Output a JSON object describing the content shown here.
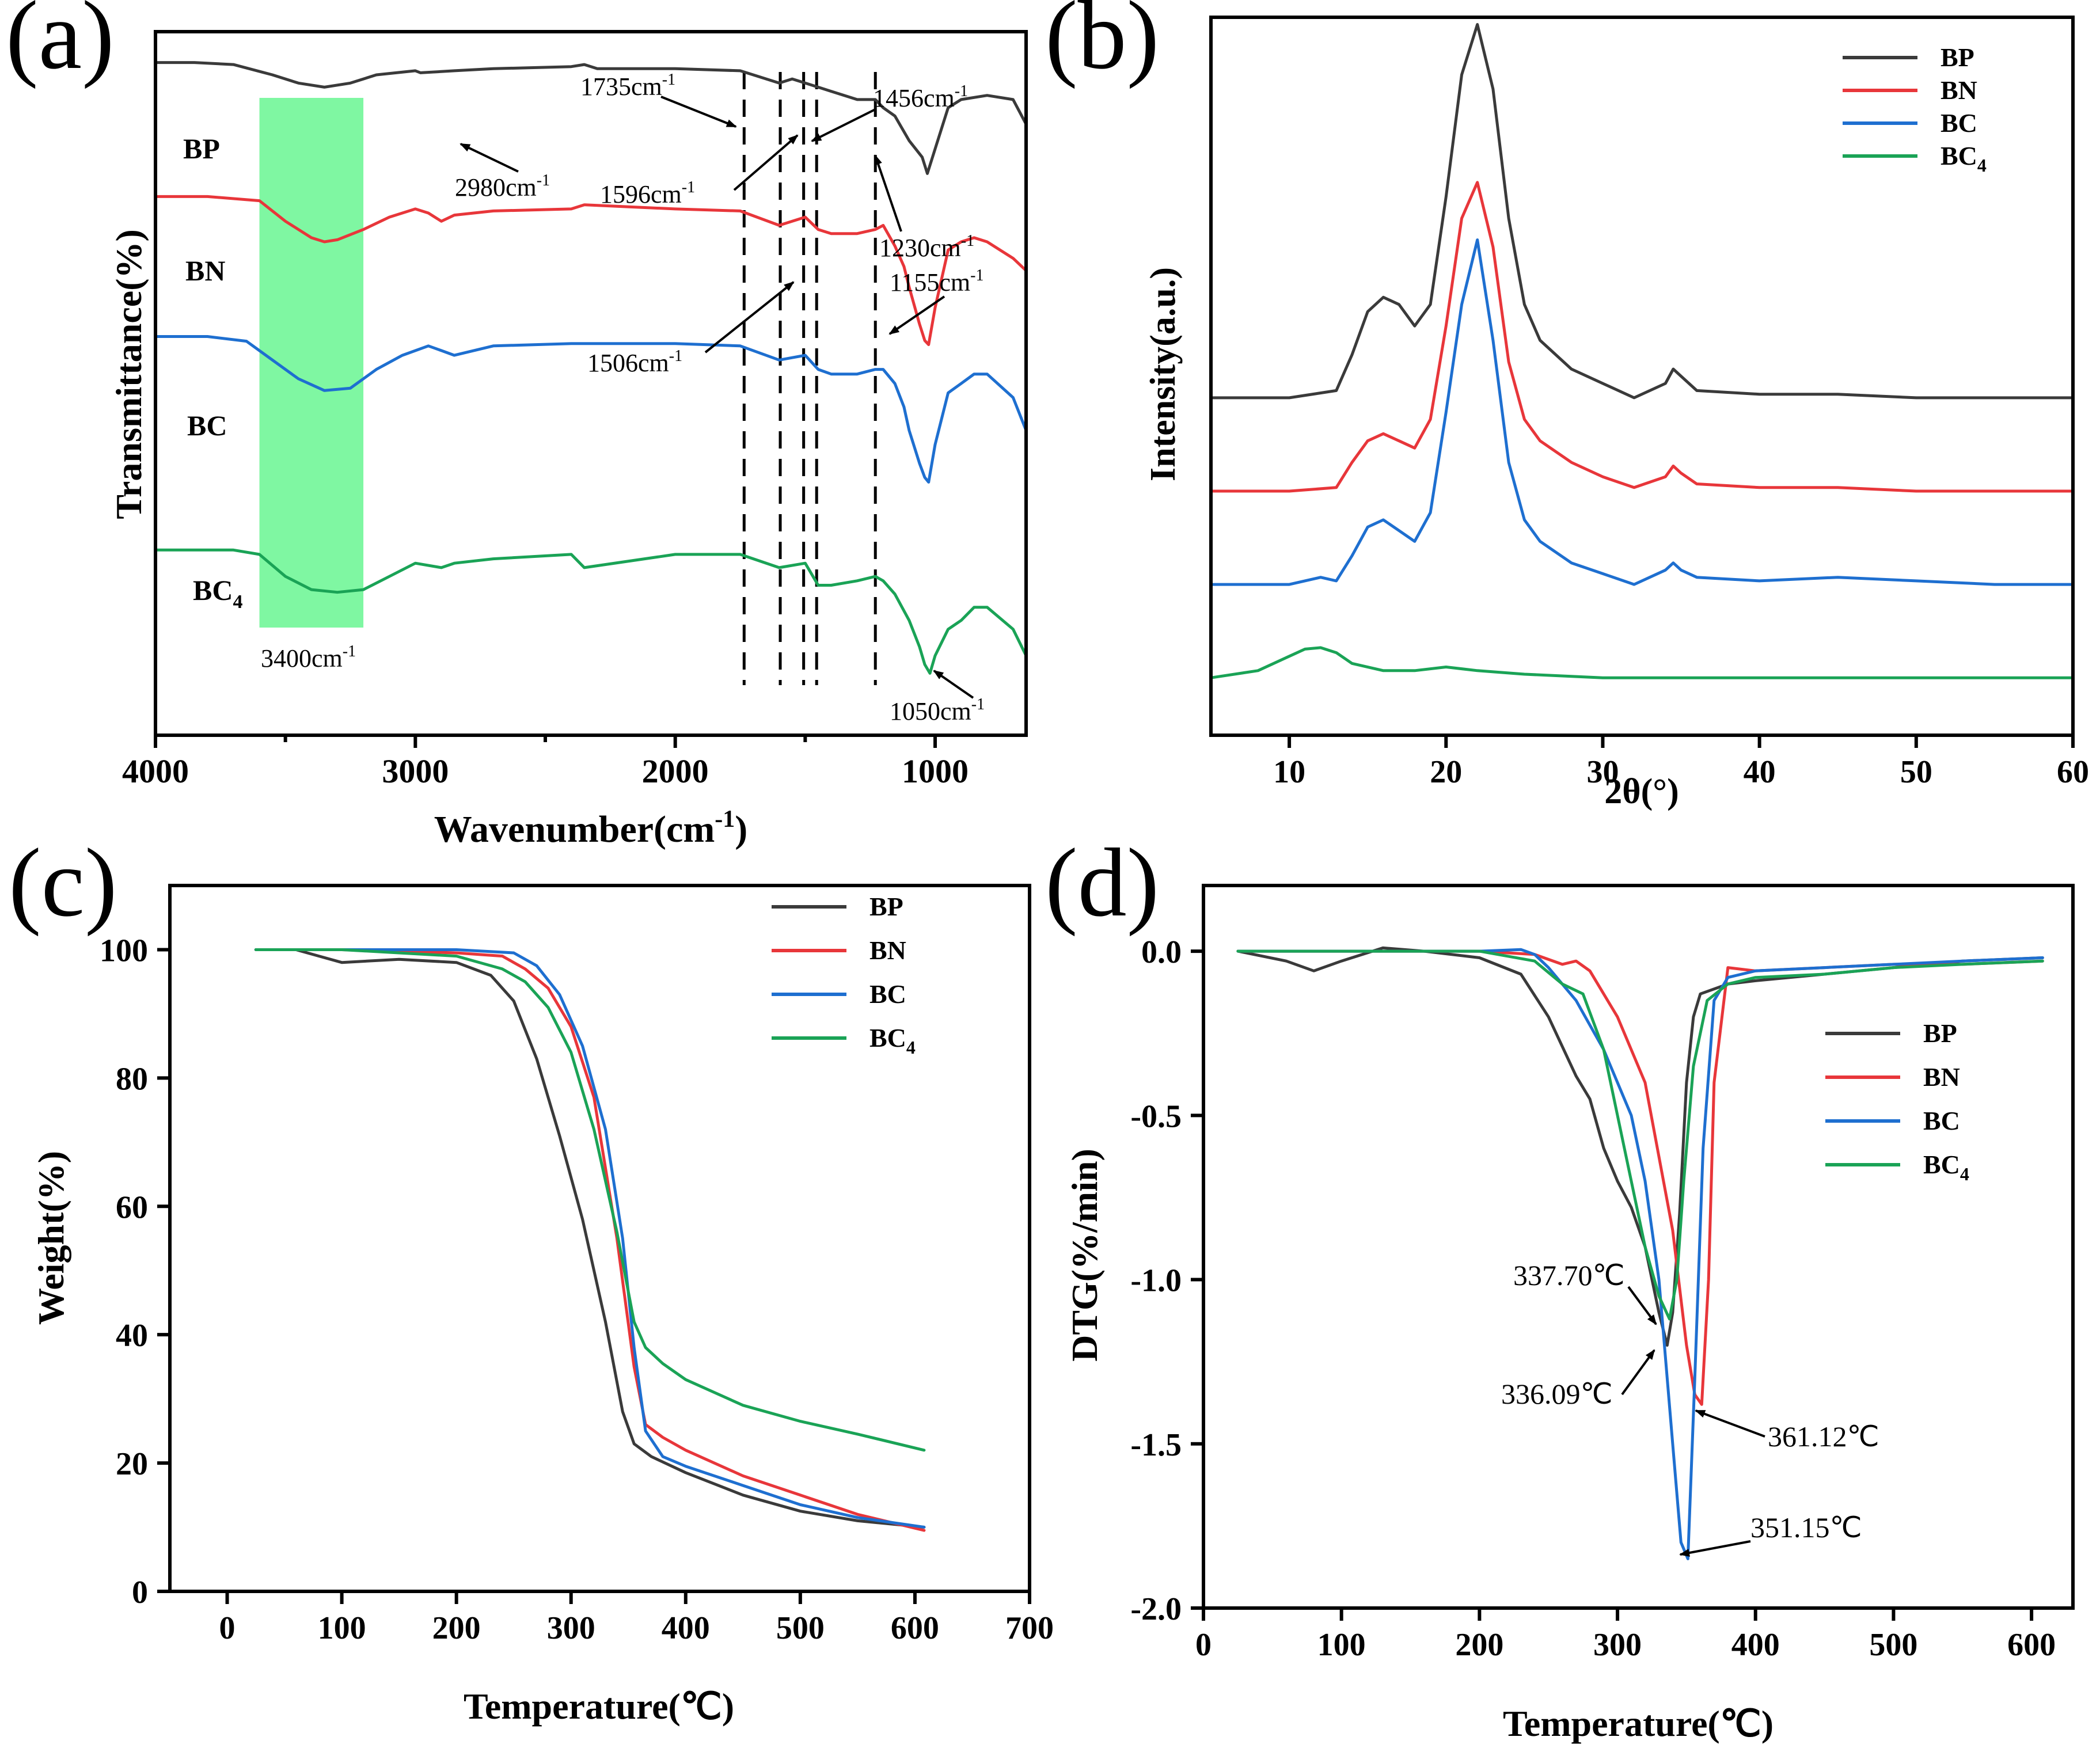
{
  "colors": {
    "BP": "#3a3a3a",
    "BN": "#e8363a",
    "BC": "#1e6fd0",
    "BC4": "#1aa356",
    "band": "#7ff7a2"
  },
  "chart_data": [
    {
      "panel": "(a)",
      "type": "line",
      "xlabel": "Wavenumber(cm",
      "xlabel_sup": "-1",
      "xlabel_end": ")",
      "ylabel": "Transmittance(%)",
      "xlim": [
        4000,
        650
      ],
      "ylim": [
        0,
        100
      ],
      "xticks": [
        "4000",
        "3000",
        "2000",
        "1000"
      ],
      "xtick_values": [
        4000,
        3000,
        2000,
        1000
      ],
      "band": [
        3600,
        3200
      ],
      "vlines": [
        1735,
        1596,
        1506,
        1456,
        1230
      ],
      "series": [
        {
          "name": "BP",
          "label": "BP",
          "sub": "",
          "x": [
            4000,
            3850,
            3700,
            3550,
            3450,
            3350,
            3250,
            3150,
            3000,
            2980,
            2850,
            2700,
            2400,
            2350,
            2300,
            2000,
            1750,
            1700,
            1600,
            1550,
            1500,
            1450,
            1400,
            1300,
            1230,
            1200,
            1155,
            1100,
            1050,
            1030,
            1000,
            950,
            900,
            800,
            700,
            650
          ],
          "y": [
            91,
            91,
            90.5,
            88,
            86,
            85,
            86,
            88,
            89,
            88.5,
            89,
            89.5,
            90,
            90.5,
            89.5,
            89.5,
            89,
            88,
            86,
            87,
            86,
            85,
            84,
            82,
            82,
            80,
            78,
            72,
            68,
            64,
            70,
            80,
            82,
            83,
            82,
            76
          ]
        },
        {
          "name": "BN",
          "label": "BN",
          "sub": "",
          "x": [
            4000,
            3800,
            3600,
            3500,
            3400,
            3350,
            3300,
            3200,
            3100,
            3000,
            2950,
            2900,
            2850,
            2700,
            2400,
            2350,
            2000,
            1750,
            1600,
            1550,
            1500,
            1450,
            1400,
            1300,
            1230,
            1200,
            1155,
            1120,
            1100,
            1060,
            1040,
            1025,
            1000,
            950,
            900,
            850,
            800,
            700,
            650
          ],
          "y": [
            69,
            69,
            68,
            63,
            59,
            58,
            58.5,
            61,
            64,
            66,
            65,
            63,
            64.5,
            65.5,
            66,
            67,
            66,
            65.5,
            62,
            63,
            64,
            61,
            60,
            60,
            61,
            62,
            57,
            52,
            47,
            38,
            34,
            33,
            42,
            56,
            58,
            59,
            58,
            54,
            51
          ]
        },
        {
          "name": "BC",
          "label": "BC",
          "sub": "",
          "x": [
            4000,
            3800,
            3650,
            3550,
            3450,
            3350,
            3250,
            3150,
            3050,
            2950,
            2900,
            2850,
            2700,
            2400,
            2000,
            1750,
            1600,
            1550,
            1500,
            1450,
            1400,
            1300,
            1230,
            1200,
            1155,
            1120,
            1100,
            1060,
            1040,
            1025,
            1000,
            950,
            900,
            850,
            800,
            700,
            650
          ],
          "y": [
            45,
            45,
            44,
            40,
            36,
            33.5,
            34,
            38,
            41,
            43,
            42,
            41,
            43,
            43.5,
            43.5,
            43,
            40,
            40.5,
            41,
            38,
            37,
            37,
            38,
            38,
            35,
            30,
            25,
            18,
            15,
            14,
            22,
            33,
            35,
            37,
            37,
            32,
            25
          ]
        },
        {
          "name": "BC4",
          "label": "BC",
          "sub": "4",
          "x": [
            4000,
            3700,
            3600,
            3500,
            3400,
            3300,
            3200,
            3100,
            3000,
            2900,
            2850,
            2700,
            2400,
            2350,
            2000,
            1750,
            1600,
            1500,
            1450,
            1400,
            1300,
            1230,
            1200,
            1155,
            1100,
            1060,
            1040,
            1020,
            1000,
            950,
            900,
            850,
            800,
            700,
            650
          ],
          "y": [
            19,
            19,
            18.5,
            16,
            14.5,
            14.2,
            14.5,
            16,
            17.5,
            17,
            17.5,
            18,
            18.5,
            17,
            18.5,
            18.5,
            17,
            17.5,
            15,
            15,
            15.5,
            16,
            15.5,
            14,
            11,
            8,
            6,
            5,
            7,
            10,
            11,
            12.5,
            12.5,
            10,
            7
          ]
        }
      ],
      "annotations": [
        {
          "text": "1735cm",
          "sup": "-1"
        },
        {
          "text": "1456cm",
          "sup": "-1"
        },
        {
          "text": "2980cm",
          "sup": "-1"
        },
        {
          "text": "1596cm",
          "sup": "-1"
        },
        {
          "text": "1230cm",
          "sup": "-1"
        },
        {
          "text": "1155cm",
          "sup": "-1"
        },
        {
          "text": "1506cm",
          "sup": "-1"
        },
        {
          "text": "3400cm",
          "sup": "-1"
        },
        {
          "text": "1050cm",
          "sup": "-1"
        }
      ]
    },
    {
      "panel": "(b)",
      "type": "line",
      "xlabel": "2θ(°)",
      "ylabel": "Intensity(a.u.)",
      "xlim": [
        5,
        60
      ],
      "ylim": [
        0,
        100
      ],
      "xticks": [
        "10",
        "20",
        "30",
        "40",
        "50",
        "60"
      ],
      "xtick_values": [
        10,
        20,
        30,
        40,
        50,
        60
      ],
      "legend": [
        "BP",
        "BN",
        "BC",
        "BC4"
      ],
      "series": [
        {
          "name": "BP",
          "label": "BP",
          "sub": "",
          "x": [
            5,
            10,
            13,
            14,
            15,
            16,
            17,
            18,
            19,
            20,
            21,
            22,
            23,
            24,
            25,
            26,
            28,
            30,
            32,
            34,
            34.5,
            35,
            36,
            40,
            45,
            50,
            55,
            60
          ],
          "y": [
            47,
            47,
            48,
            53,
            59,
            61,
            60,
            57,
            60,
            75,
            92,
            99,
            90,
            72,
            60,
            55,
            51,
            49,
            47,
            49,
            51,
            50,
            48,
            47.5,
            47.5,
            47,
            47,
            47
          ]
        },
        {
          "name": "BN",
          "label": "BN",
          "sub": "",
          "x": [
            5,
            10,
            13,
            14,
            15,
            16,
            17,
            18,
            19,
            20,
            21,
            22,
            23,
            24,
            25,
            26,
            28,
            30,
            32,
            34,
            34.5,
            35,
            36,
            40,
            45,
            50,
            55,
            60
          ],
          "y": [
            34,
            34,
            34.5,
            38,
            41,
            42,
            41,
            40,
            44,
            57,
            72,
            77,
            68,
            52,
            44,
            41,
            38,
            36,
            34.5,
            36,
            37.5,
            36.5,
            35,
            34.5,
            34.5,
            34,
            34,
            34
          ]
        },
        {
          "name": "BC",
          "label": "BC",
          "sub": "",
          "x": [
            5,
            10,
            12,
            13,
            14,
            15,
            16,
            17,
            18,
            19,
            20,
            21,
            22,
            23,
            24,
            25,
            26,
            28,
            30,
            32,
            34,
            34.5,
            35,
            36,
            40,
            45,
            50,
            55,
            60
          ],
          "y": [
            21,
            21,
            22,
            21.5,
            25,
            29,
            30,
            28.5,
            27,
            31,
            45,
            60,
            69,
            55,
            38,
            30,
            27,
            24,
            22.5,
            21,
            23,
            24,
            23,
            22,
            21.5,
            22,
            21.5,
            21,
            21
          ]
        },
        {
          "name": "BC4",
          "label": "BC",
          "sub": "4",
          "x": [
            5,
            8,
            10,
            11,
            12,
            13,
            14,
            16,
            18,
            20,
            22,
            25,
            30,
            40,
            50,
            60
          ],
          "y": [
            8,
            9,
            11,
            12,
            12.2,
            11.5,
            10,
            9,
            9,
            9.5,
            9,
            8.5,
            8,
            8,
            8,
            8
          ]
        }
      ]
    },
    {
      "panel": "(c)",
      "type": "line",
      "xlabel": "Temperature(℃)",
      "ylabel": "Weight(%)",
      "xlim": [
        -50,
        700
      ],
      "ylim": [
        0,
        110
      ],
      "xticks": [
        "0",
        "100",
        "200",
        "300",
        "400",
        "500",
        "600",
        "700"
      ],
      "xtick_values": [
        0,
        100,
        200,
        300,
        400,
        500,
        600,
        700
      ],
      "yticks": [
        "0",
        "20",
        "40",
        "60",
        "80",
        "100"
      ],
      "ytick_values": [
        0,
        20,
        40,
        60,
        80,
        100
      ],
      "legend": [
        "BP",
        "BN",
        "BC",
        "BC4"
      ],
      "series": [
        {
          "name": "BP",
          "label": "BP",
          "sub": "",
          "x": [
            25,
            60,
            80,
            100,
            150,
            200,
            230,
            250,
            270,
            290,
            310,
            330,
            345,
            355,
            370,
            400,
            450,
            500,
            550,
            608
          ],
          "y": [
            100,
            100,
            99,
            98,
            98.5,
            98,
            96,
            92,
            83,
            71,
            58,
            42,
            28,
            23,
            21,
            18.5,
            15,
            12.5,
            11,
            10
          ]
        },
        {
          "name": "BN",
          "label": "BN",
          "sub": "",
          "x": [
            25,
            100,
            200,
            240,
            260,
            280,
            300,
            320,
            340,
            355,
            365,
            380,
            400,
            450,
            500,
            550,
            608
          ],
          "y": [
            100,
            100,
            99.5,
            99,
            97,
            94,
            88,
            77,
            55,
            35,
            26,
            24,
            22,
            18,
            15,
            12,
            9.5
          ]
        },
        {
          "name": "BC",
          "label": "BC",
          "sub": "",
          "x": [
            25,
            100,
            200,
            250,
            270,
            290,
            310,
            330,
            345,
            355,
            365,
            380,
            400,
            450,
            500,
            550,
            608
          ],
          "y": [
            100,
            100,
            100,
            99.5,
            97.5,
            93,
            85,
            72,
            55,
            38,
            25,
            21,
            19.5,
            16.5,
            13.5,
            11.5,
            10
          ]
        },
        {
          "name": "BC4",
          "label": "BC",
          "sub": "4",
          "x": [
            25,
            100,
            200,
            240,
            260,
            280,
            300,
            320,
            340,
            355,
            365,
            380,
            400,
            450,
            500,
            550,
            608
          ],
          "y": [
            100,
            100,
            99,
            97,
            95,
            91,
            84,
            72,
            56,
            42,
            38,
            35.5,
            33,
            29,
            26.5,
            24.5,
            22
          ]
        }
      ]
    },
    {
      "panel": "(d)",
      "type": "line",
      "xlabel": "Temperature(℃)",
      "ylabel": "DTG(%/min)",
      "xlim": [
        0,
        630
      ],
      "ylim": [
        -2.0,
        0.2
      ],
      "xticks": [
        "0",
        "100",
        "200",
        "300",
        "400",
        "500",
        "600"
      ],
      "xtick_values": [
        0,
        100,
        200,
        300,
        400,
        500,
        600
      ],
      "yticks": [
        "0.0",
        "-0.5",
        "-1.0",
        "-1.5",
        "-2.0"
      ],
      "ytick_values": [
        0.0,
        -0.5,
        -1.0,
        -1.5,
        -2.0
      ],
      "legend": [
        "BP",
        "BN",
        "BC",
        "BC4"
      ],
      "series": [
        {
          "name": "BP",
          "label": "BP",
          "sub": "",
          "x": [
            25,
            60,
            80,
            100,
            130,
            160,
            200,
            230,
            250,
            270,
            280,
            290,
            300,
            310,
            320,
            330,
            336,
            340,
            345,
            350,
            355,
            360,
            380,
            400,
            450,
            500,
            550,
            608
          ],
          "y": [
            0,
            -0.03,
            -0.06,
            -0.03,
            0.01,
            0.0,
            -0.02,
            -0.07,
            -0.2,
            -0.38,
            -0.45,
            -0.6,
            -0.7,
            -0.78,
            -0.9,
            -1.1,
            -1.2,
            -1.1,
            -0.8,
            -0.4,
            -0.2,
            -0.13,
            -0.1,
            -0.09,
            -0.07,
            -0.05,
            -0.03,
            -0.02
          ]
        },
        {
          "name": "BN",
          "label": "BN",
          "sub": "",
          "x": [
            25,
            100,
            200,
            240,
            260,
            270,
            280,
            300,
            320,
            340,
            350,
            356,
            361,
            366,
            370,
            380,
            400,
            450,
            500,
            550,
            608
          ],
          "y": [
            0,
            0,
            0,
            -0.01,
            -0.04,
            -0.03,
            -0.06,
            -0.2,
            -0.4,
            -0.85,
            -1.2,
            -1.35,
            -1.38,
            -1.0,
            -0.4,
            -0.05,
            -0.06,
            -0.05,
            -0.04,
            -0.04,
            -0.03
          ]
        },
        {
          "name": "BC",
          "label": "BC",
          "sub": "",
          "x": [
            25,
            100,
            200,
            230,
            240,
            250,
            270,
            290,
            310,
            320,
            330,
            340,
            346,
            351,
            356,
            362,
            370,
            380,
            400,
            450,
            500,
            550,
            608
          ],
          "y": [
            0,
            0,
            0,
            0.005,
            -0.01,
            -0.05,
            -0.15,
            -0.3,
            -0.5,
            -0.7,
            -1.0,
            -1.5,
            -1.8,
            -1.85,
            -1.3,
            -0.6,
            -0.15,
            -0.08,
            -0.06,
            -0.05,
            -0.04,
            -0.03,
            -0.02
          ]
        },
        {
          "name": "BC4",
          "label": "BC",
          "sub": "4",
          "x": [
            25,
            100,
            200,
            240,
            260,
            275,
            290,
            305,
            320,
            330,
            337.7,
            343,
            348,
            355,
            365,
            380,
            400,
            450,
            500,
            550,
            608
          ],
          "y": [
            0,
            0,
            0,
            -0.03,
            -0.1,
            -0.13,
            -0.3,
            -0.6,
            -0.9,
            -1.05,
            -1.12,
            -1.0,
            -0.7,
            -0.35,
            -0.15,
            -0.1,
            -0.08,
            -0.07,
            -0.05,
            -0.04,
            -0.03
          ]
        }
      ],
      "annotations": [
        "337.70℃",
        "336.09℃",
        "361.12℃",
        "351.15℃"
      ]
    }
  ]
}
